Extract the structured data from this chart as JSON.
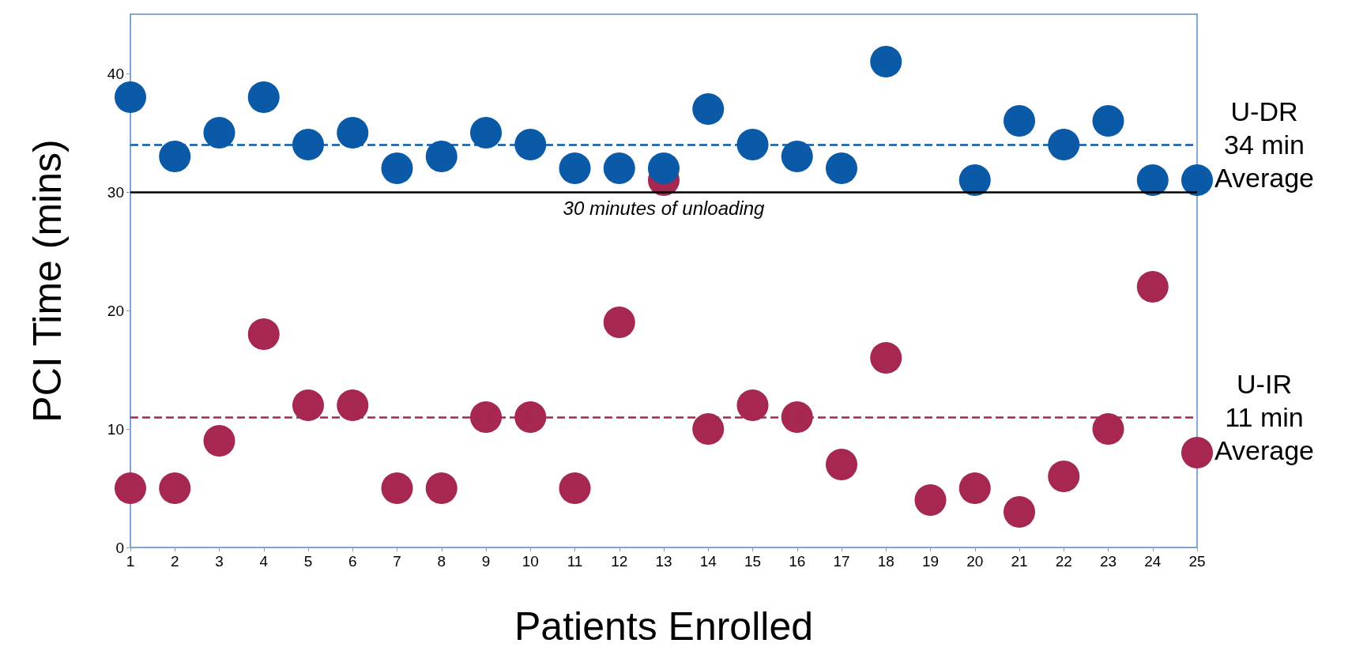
{
  "chart_data": {
    "type": "scatter",
    "xlabel": "Patients Enrolled",
    "ylabel": "PCI Time (mins)",
    "x": [
      1,
      2,
      3,
      4,
      5,
      6,
      7,
      8,
      9,
      10,
      11,
      12,
      13,
      14,
      15,
      16,
      17,
      18,
      19,
      20,
      21,
      22,
      23,
      24,
      25
    ],
    "xlim": [
      1,
      25
    ],
    "xticks": [
      1,
      2,
      3,
      4,
      5,
      6,
      7,
      8,
      9,
      10,
      11,
      12,
      13,
      14,
      15,
      16,
      17,
      18,
      19,
      20,
      21,
      22,
      23,
      24,
      25
    ],
    "ylim": [
      0,
      45
    ],
    "yticks": [
      0,
      10,
      20,
      30,
      40
    ],
    "grid": false,
    "marker": "circle",
    "series": [
      {
        "color": "#a62750",
        "values": [
          5,
          5,
          9,
          18,
          12,
          12,
          5,
          5,
          11,
          11,
          5,
          19,
          31,
          10,
          12,
          11,
          7,
          16,
          4,
          5,
          3,
          6,
          10,
          22,
          8
        ]
      },
      {
        "color": "#0a5aa8",
        "values": [
          38,
          33,
          35,
          38,
          34,
          35,
          32,
          33,
          35,
          34,
          32,
          32,
          32,
          37,
          34,
          33,
          32,
          41,
          null,
          31,
          36,
          34,
          36,
          31,
          31
        ]
      }
    ],
    "ref_lines": [
      {
        "axis": "y",
        "value": 34,
        "label": "U-DR\n34 min\nAverage",
        "color": "#0a5aa8",
        "line_style": "dashed"
      },
      {
        "axis": "y",
        "value": 11,
        "label": "U-IR\n11 min\nAverage",
        "color": "#a62750",
        "line_style": "dashed"
      },
      {
        "axis": "y",
        "value": 30,
        "label": "30 minutes of unloading",
        "color": "#000000",
        "line_style": "solid"
      }
    ]
  }
}
